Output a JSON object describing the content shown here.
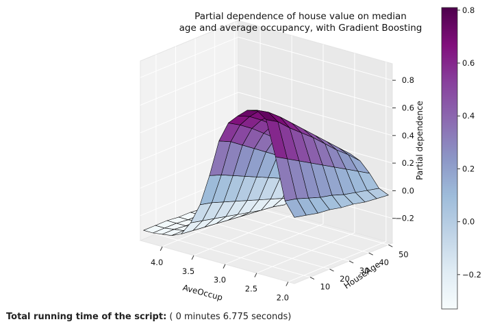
{
  "chart_data": {
    "type": "surface3d",
    "title_lines": [
      "Partial dependence of house value on median",
      "age and average occupancy, with Gradient Boosting"
    ],
    "xlabel": "AveOccup",
    "ylabel": "HouseAge",
    "zlabel": "Partial dependence",
    "x_range": [
      1.9,
      4.35
    ],
    "y_range": [
      2,
      52
    ],
    "z_range": [
      -0.38,
      0.92
    ],
    "x_ticks": [
      {
        "v": 4.0,
        "label": "4.0"
      },
      {
        "v": 3.5,
        "label": "3.5"
      },
      {
        "v": 3.0,
        "label": "3.0"
      },
      {
        "v": 2.5,
        "label": "2.5"
      },
      {
        "v": 2.0,
        "label": "2.0"
      }
    ],
    "y_ticks": [
      {
        "v": 10,
        "label": "10"
      },
      {
        "v": 20,
        "label": "20"
      },
      {
        "v": 30,
        "label": "30"
      },
      {
        "v": 40,
        "label": "40"
      },
      {
        "v": 50,
        "label": "50"
      }
    ],
    "z_ticks": [
      {
        "v": 0.8,
        "label": "0.8"
      },
      {
        "v": 0.6,
        "label": "0.6"
      },
      {
        "v": 0.4,
        "label": "0.4"
      },
      {
        "v": 0.2,
        "label": "0.2"
      },
      {
        "v": 0.0,
        "label": "0.0"
      },
      {
        "v": -0.2,
        "label": "−0.2"
      }
    ],
    "colorbar": {
      "colormap": "BuPu",
      "range": [
        -0.33,
        0.81
      ],
      "ticks": [
        {
          "v": 0.8,
          "label": "0.8"
        },
        {
          "v": 0.6,
          "label": "0.6"
        },
        {
          "v": 0.4,
          "label": "0.4"
        },
        {
          "v": 0.2,
          "label": "0.2"
        },
        {
          "v": 0.0,
          "label": "0.0"
        },
        {
          "v": -0.2,
          "label": "−0.2"
        }
      ]
    },
    "surface": {
      "rows_x_from_high_to_low_occupancy": [
        4.3,
        4.15,
        4.0,
        3.85,
        3.7,
        3.55,
        3.4,
        3.25,
        3.1,
        2.95,
        2.8,
        2.65,
        2.5,
        2.35,
        2.2,
        2.05,
        1.9
      ],
      "columns_house_age": [
        2,
        8,
        14,
        20,
        26,
        32,
        38,
        44,
        50
      ],
      "z_rows_houseage_2_to_50": [
        [
          -0.3,
          -0.3,
          -0.29,
          -0.28,
          -0.25,
          -0.15,
          0.0,
          0.23,
          0.5,
          0.65,
          0.72,
          0.78,
          0.8,
          0.75,
          0.5,
          0.2,
          0.1
        ],
        [
          -0.3,
          -0.3,
          -0.29,
          -0.28,
          -0.26,
          -0.17,
          -0.02,
          0.2,
          0.46,
          0.6,
          0.68,
          0.74,
          0.75,
          0.7,
          0.45,
          0.18,
          0.08
        ],
        [
          -0.3,
          -0.3,
          -0.3,
          -0.29,
          -0.27,
          -0.19,
          -0.05,
          0.16,
          0.4,
          0.54,
          0.62,
          0.67,
          0.68,
          0.62,
          0.4,
          0.15,
          0.06
        ],
        [
          -0.31,
          -0.31,
          -0.3,
          -0.3,
          -0.28,
          -0.21,
          -0.08,
          0.12,
          0.34,
          0.47,
          0.55,
          0.6,
          0.6,
          0.55,
          0.35,
          0.12,
          0.05
        ],
        [
          -0.31,
          -0.31,
          -0.31,
          -0.3,
          -0.29,
          -0.23,
          -0.11,
          0.08,
          0.28,
          0.4,
          0.48,
          0.52,
          0.52,
          0.48,
          0.3,
          0.1,
          0.03
        ],
        [
          -0.32,
          -0.31,
          -0.31,
          -0.31,
          -0.3,
          -0.25,
          -0.14,
          0.04,
          0.22,
          0.33,
          0.4,
          0.44,
          0.44,
          0.4,
          0.25,
          0.07,
          0.02
        ],
        [
          -0.32,
          -0.32,
          -0.32,
          -0.31,
          -0.31,
          -0.27,
          -0.17,
          0.0,
          0.16,
          0.26,
          0.33,
          0.36,
          0.36,
          0.32,
          0.2,
          0.05,
          0.0
        ],
        [
          -0.33,
          -0.32,
          -0.32,
          -0.32,
          -0.31,
          -0.28,
          -0.2,
          -0.04,
          0.1,
          0.19,
          0.25,
          0.28,
          0.28,
          0.25,
          0.15,
          0.03,
          -0.01
        ],
        [
          -0.33,
          -0.33,
          -0.33,
          -0.32,
          -0.32,
          -0.3,
          -0.23,
          -0.08,
          0.04,
          0.12,
          0.17,
          0.2,
          0.2,
          0.17,
          0.1,
          0.01,
          -0.02
        ]
      ]
    }
  },
  "footer": {
    "label": "Total running time of the script:",
    "value": " ( 0 minutes 6.775 seconds)"
  }
}
